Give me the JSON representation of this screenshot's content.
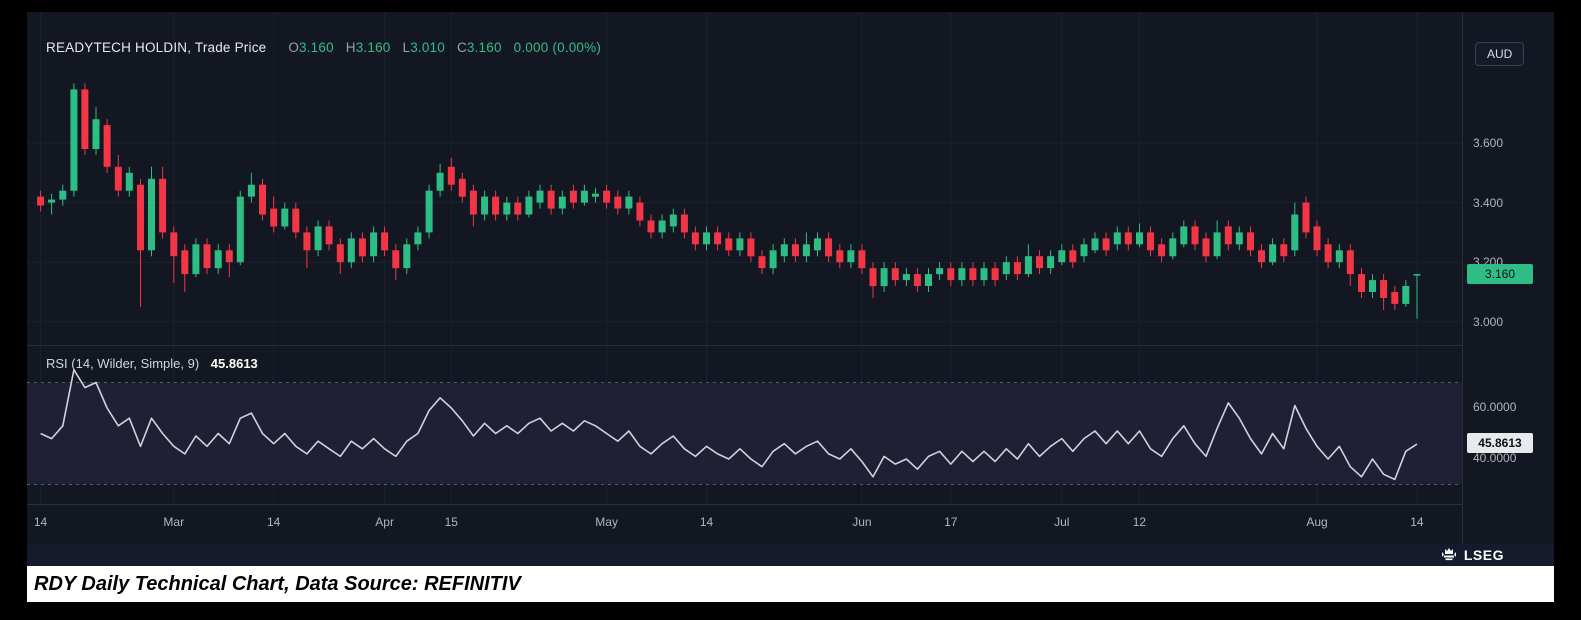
{
  "legend": {
    "symbol": "READYTECH HOLDIN, Trade Price",
    "o_label": "O",
    "h_label": "H",
    "l_label": "L",
    "c_label": "C",
    "change": "0.000 (0.00%)"
  },
  "price_scale": {
    "currency": "AUD",
    "last_price": "3.160"
  },
  "rsi_panel": {
    "label": "RSI (14, Wilder, Simple, 9)",
    "value": "45.8613"
  },
  "footer": {
    "brand": "LSEG"
  },
  "caption": {
    "text": "RDY Daily Technical Chart, Data Source: REFINITIV"
  },
  "colors": {
    "background": "#131722",
    "up": "#2ebd85",
    "down": "#f23645",
    "grid": "#1c212e",
    "axis_text": "#b2b5be",
    "rsi_line": "#cfd2dc",
    "rsi_band_fill": "rgba(126,87,194,0.12)",
    "rsi_dash": "#565b6b",
    "separator": "#2a2e39",
    "price_tag_bg": "#2ebd85",
    "rsi_tag_bg": "#e8e9ed",
    "footer_bg": "#151b2c"
  },
  "chart_data": {
    "type": "candlestick",
    "title": "READYTECH HOLDIN, Trade Price",
    "currency": "AUD",
    "last": {
      "open": "3.160",
      "high": "3.160",
      "low": "3.010",
      "close": "3.160",
      "change": "0.000",
      "change_pct": "0.00%"
    },
    "price_axis": {
      "ticks": [
        3.6,
        3.4,
        3.2,
        3.0
      ],
      "tick_labels": [
        "3.600",
        "3.400",
        "3.200",
        "3.000"
      ],
      "range": [
        2.92,
        4.04
      ]
    },
    "x_tick_labels": [
      "14",
      "Mar",
      "14",
      "Apr",
      "15",
      "May",
      "14",
      "Jun",
      "17",
      "Jul",
      "12",
      "Aug",
      "14"
    ],
    "x_tick_indices": [
      0,
      12,
      21,
      31,
      37,
      51,
      60,
      74,
      82,
      92,
      99,
      115,
      124
    ],
    "candles_ohlc": [
      [
        3.42,
        3.44,
        3.37,
        3.39
      ],
      [
        3.4,
        3.43,
        3.36,
        3.41
      ],
      [
        3.41,
        3.46,
        3.39,
        3.44
      ],
      [
        3.44,
        3.8,
        3.42,
        3.78
      ],
      [
        3.78,
        3.8,
        3.56,
        3.58
      ],
      [
        3.58,
        3.72,
        3.56,
        3.68
      ],
      [
        3.66,
        3.68,
        3.5,
        3.52
      ],
      [
        3.52,
        3.56,
        3.42,
        3.44
      ],
      [
        3.44,
        3.52,
        3.42,
        3.5
      ],
      [
        3.46,
        3.48,
        3.05,
        3.24
      ],
      [
        3.24,
        3.52,
        3.22,
        3.48
      ],
      [
        3.48,
        3.52,
        3.28,
        3.3
      ],
      [
        3.3,
        3.32,
        3.13,
        3.22
      ],
      [
        3.24,
        3.26,
        3.1,
        3.16
      ],
      [
        3.16,
        3.28,
        3.15,
        3.26
      ],
      [
        3.26,
        3.28,
        3.16,
        3.18
      ],
      [
        3.18,
        3.26,
        3.16,
        3.24
      ],
      [
        3.24,
        3.26,
        3.15,
        3.2
      ],
      [
        3.2,
        3.44,
        3.19,
        3.42
      ],
      [
        3.42,
        3.5,
        3.4,
        3.46
      ],
      [
        3.46,
        3.48,
        3.34,
        3.36
      ],
      [
        3.38,
        3.42,
        3.3,
        3.32
      ],
      [
        3.32,
        3.4,
        3.31,
        3.38
      ],
      [
        3.38,
        3.4,
        3.28,
        3.3
      ],
      [
        3.3,
        3.32,
        3.18,
        3.24
      ],
      [
        3.24,
        3.34,
        3.22,
        3.32
      ],
      [
        3.32,
        3.34,
        3.24,
        3.26
      ],
      [
        3.26,
        3.28,
        3.16,
        3.2
      ],
      [
        3.2,
        3.3,
        3.18,
        3.28
      ],
      [
        3.28,
        3.3,
        3.2,
        3.22
      ],
      [
        3.22,
        3.32,
        3.2,
        3.3
      ],
      [
        3.3,
        3.32,
        3.22,
        3.24
      ],
      [
        3.24,
        3.26,
        3.14,
        3.18
      ],
      [
        3.18,
        3.28,
        3.16,
        3.26
      ],
      [
        3.26,
        3.32,
        3.24,
        3.3
      ],
      [
        3.3,
        3.46,
        3.28,
        3.44
      ],
      [
        3.44,
        3.53,
        3.42,
        3.5
      ],
      [
        3.52,
        3.55,
        3.44,
        3.46
      ],
      [
        3.48,
        3.5,
        3.4,
        3.42
      ],
      [
        3.44,
        3.46,
        3.32,
        3.36
      ],
      [
        3.36,
        3.44,
        3.34,
        3.42
      ],
      [
        3.42,
        3.44,
        3.34,
        3.36
      ],
      [
        3.36,
        3.42,
        3.34,
        3.4
      ],
      [
        3.4,
        3.42,
        3.34,
        3.36
      ],
      [
        3.36,
        3.44,
        3.35,
        3.42
      ],
      [
        3.4,
        3.46,
        3.38,
        3.44
      ],
      [
        3.44,
        3.46,
        3.36,
        3.38
      ],
      [
        3.38,
        3.44,
        3.36,
        3.42
      ],
      [
        3.44,
        3.46,
        3.38,
        3.4
      ],
      [
        3.4,
        3.46,
        3.39,
        3.44
      ],
      [
        3.42,
        3.45,
        3.4,
        3.43
      ],
      [
        3.44,
        3.46,
        3.38,
        3.4
      ],
      [
        3.42,
        3.44,
        3.36,
        3.38
      ],
      [
        3.38,
        3.44,
        3.36,
        3.42
      ],
      [
        3.4,
        3.42,
        3.32,
        3.34
      ],
      [
        3.34,
        3.36,
        3.28,
        3.3
      ],
      [
        3.3,
        3.36,
        3.28,
        3.34
      ],
      [
        3.32,
        3.38,
        3.3,
        3.36
      ],
      [
        3.36,
        3.38,
        3.28,
        3.3
      ],
      [
        3.3,
        3.32,
        3.24,
        3.26
      ],
      [
        3.26,
        3.32,
        3.24,
        3.3
      ],
      [
        3.3,
        3.32,
        3.24,
        3.26
      ],
      [
        3.28,
        3.3,
        3.22,
        3.24
      ],
      [
        3.24,
        3.3,
        3.22,
        3.28
      ],
      [
        3.28,
        3.3,
        3.2,
        3.22
      ],
      [
        3.22,
        3.24,
        3.16,
        3.18
      ],
      [
        3.18,
        3.26,
        3.16,
        3.24
      ],
      [
        3.22,
        3.28,
        3.2,
        3.26
      ],
      [
        3.26,
        3.28,
        3.2,
        3.22
      ],
      [
        3.22,
        3.3,
        3.2,
        3.26
      ],
      [
        3.24,
        3.3,
        3.22,
        3.28
      ],
      [
        3.28,
        3.3,
        3.2,
        3.22
      ],
      [
        3.24,
        3.26,
        3.18,
        3.2
      ],
      [
        3.2,
        3.26,
        3.18,
        3.24
      ],
      [
        3.24,
        3.26,
        3.16,
        3.18
      ],
      [
        3.18,
        3.2,
        3.08,
        3.12
      ],
      [
        3.12,
        3.2,
        3.1,
        3.18
      ],
      [
        3.18,
        3.2,
        3.12,
        3.14
      ],
      [
        3.14,
        3.18,
        3.12,
        3.16
      ],
      [
        3.16,
        3.18,
        3.1,
        3.12
      ],
      [
        3.12,
        3.18,
        3.1,
        3.16
      ],
      [
        3.16,
        3.2,
        3.14,
        3.18
      ],
      [
        3.18,
        3.2,
        3.12,
        3.14
      ],
      [
        3.14,
        3.2,
        3.12,
        3.18
      ],
      [
        3.18,
        3.2,
        3.12,
        3.14
      ],
      [
        3.14,
        3.2,
        3.12,
        3.18
      ],
      [
        3.18,
        3.2,
        3.12,
        3.14
      ],
      [
        3.16,
        3.22,
        3.14,
        3.2
      ],
      [
        3.2,
        3.22,
        3.14,
        3.16
      ],
      [
        3.16,
        3.26,
        3.15,
        3.22
      ],
      [
        3.22,
        3.24,
        3.16,
        3.18
      ],
      [
        3.18,
        3.24,
        3.16,
        3.22
      ],
      [
        3.2,
        3.26,
        3.19,
        3.24
      ],
      [
        3.24,
        3.26,
        3.18,
        3.2
      ],
      [
        3.22,
        3.28,
        3.2,
        3.26
      ],
      [
        3.24,
        3.3,
        3.23,
        3.28
      ],
      [
        3.28,
        3.3,
        3.22,
        3.24
      ],
      [
        3.26,
        3.32,
        3.24,
        3.3
      ],
      [
        3.3,
        3.32,
        3.24,
        3.26
      ],
      [
        3.26,
        3.33,
        3.25,
        3.3
      ],
      [
        3.3,
        3.32,
        3.22,
        3.24
      ],
      [
        3.26,
        3.28,
        3.2,
        3.22
      ],
      [
        3.22,
        3.3,
        3.21,
        3.28
      ],
      [
        3.26,
        3.34,
        3.25,
        3.32
      ],
      [
        3.32,
        3.34,
        3.24,
        3.26
      ],
      [
        3.28,
        3.3,
        3.2,
        3.22
      ],
      [
        3.22,
        3.34,
        3.21,
        3.3
      ],
      [
        3.32,
        3.34,
        3.24,
        3.26
      ],
      [
        3.26,
        3.32,
        3.24,
        3.3
      ],
      [
        3.3,
        3.32,
        3.22,
        3.24
      ],
      [
        3.24,
        3.26,
        3.18,
        3.2
      ],
      [
        3.2,
        3.28,
        3.19,
        3.26
      ],
      [
        3.26,
        3.28,
        3.2,
        3.22
      ],
      [
        3.24,
        3.4,
        3.22,
        3.36
      ],
      [
        3.4,
        3.42,
        3.28,
        3.3
      ],
      [
        3.32,
        3.34,
        3.22,
        3.24
      ],
      [
        3.26,
        3.28,
        3.18,
        3.2
      ],
      [
        3.2,
        3.26,
        3.18,
        3.24
      ],
      [
        3.24,
        3.26,
        3.12,
        3.16
      ],
      [
        3.16,
        3.18,
        3.08,
        3.1
      ],
      [
        3.1,
        3.16,
        3.08,
        3.14
      ],
      [
        3.14,
        3.16,
        3.04,
        3.08
      ],
      [
        3.1,
        3.12,
        3.04,
        3.06
      ],
      [
        3.06,
        3.14,
        3.05,
        3.12
      ],
      [
        3.16,
        3.16,
        3.01,
        3.16
      ]
    ],
    "rsi": {
      "period": 14,
      "method": "Wilder",
      "source": "Simple",
      "smoothing": 9,
      "last": 45.8613,
      "axis_ticks": [
        60,
        40
      ],
      "axis_tick_labels": [
        "60.0000",
        "40.0000"
      ],
      "bands": [
        30,
        70
      ],
      "values": [
        50,
        48,
        53,
        75,
        68,
        70,
        60,
        53,
        56,
        45,
        56,
        50,
        45,
        42,
        49,
        45,
        50,
        46,
        56,
        58,
        50,
        46,
        50,
        45,
        42,
        47,
        44,
        41,
        47,
        44,
        48,
        44,
        41,
        47,
        50,
        59,
        64,
        60,
        55,
        49,
        54,
        50,
        53,
        50,
        54,
        56,
        51,
        54,
        51,
        55,
        53,
        50,
        47,
        51,
        45,
        42,
        46,
        49,
        44,
        41,
        45,
        42,
        40,
        44,
        40,
        37,
        43,
        46,
        42,
        45,
        47,
        42,
        40,
        44,
        39,
        33,
        41,
        38,
        40,
        36,
        41,
        43,
        38,
        43,
        39,
        43,
        39,
        44,
        40,
        46,
        41,
        45,
        48,
        43,
        48,
        51,
        46,
        51,
        46,
        51,
        44,
        41,
        48,
        53,
        46,
        41,
        52,
        62,
        56,
        48,
        42,
        50,
        44,
        61,
        52,
        45,
        40,
        45,
        37,
        33,
        40,
        34,
        32,
        43,
        45.8613
      ]
    }
  }
}
